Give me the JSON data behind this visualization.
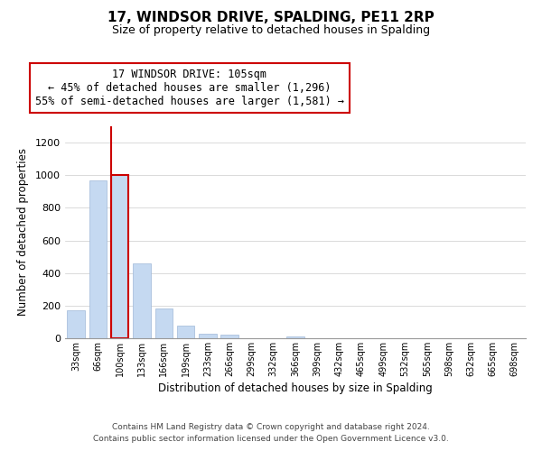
{
  "title": "17, WINDSOR DRIVE, SPALDING, PE11 2RP",
  "subtitle": "Size of property relative to detached houses in Spalding",
  "xlabel": "Distribution of detached houses by size in Spalding",
  "ylabel": "Number of detached properties",
  "bar_labels": [
    "33sqm",
    "66sqm",
    "100sqm",
    "133sqm",
    "166sqm",
    "199sqm",
    "233sqm",
    "266sqm",
    "299sqm",
    "332sqm",
    "366sqm",
    "399sqm",
    "432sqm",
    "465sqm",
    "499sqm",
    "532sqm",
    "565sqm",
    "598sqm",
    "632sqm",
    "665sqm",
    "698sqm"
  ],
  "bar_values": [
    170,
    970,
    1000,
    460,
    185,
    75,
    25,
    20,
    0,
    0,
    10,
    0,
    0,
    0,
    0,
    0,
    0,
    0,
    0,
    0,
    0
  ],
  "bar_color": "#c5d9f1",
  "bar_edge_color": "#a0b8d8",
  "highlight_color": "#cc0000",
  "highlight_index": 2,
  "annotation_title": "17 WINDSOR DRIVE: 105sqm",
  "annotation_line1": "← 45% of detached houses are smaller (1,296)",
  "annotation_line2": "55% of semi-detached houses are larger (1,581) →",
  "ylim": [
    0,
    1300
  ],
  "yticks": [
    0,
    200,
    400,
    600,
    800,
    1000,
    1200
  ],
  "footer1": "Contains HM Land Registry data © Crown copyright and database right 2024.",
  "footer2": "Contains public sector information licensed under the Open Government Licence v3.0.",
  "bg_color": "#ffffff",
  "grid_color": "#cccccc"
}
